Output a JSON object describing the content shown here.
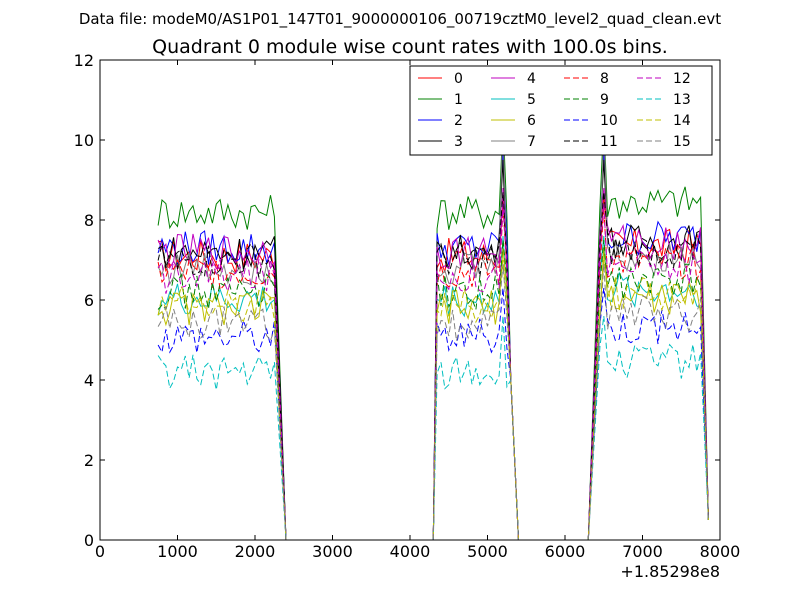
{
  "chart_data": {
    "type": "line",
    "suptitle": "Data file: modeM0/AS1P01_147T01_9000000106_00719cztM0_level2_quad_clean.evt",
    "title": "Quadrant 0 module wise count rates with 100.0s bins.",
    "xlabel": "",
    "ylabel": "",
    "xlim": [
      0,
      8000
    ],
    "ylim": [
      0,
      12
    ],
    "x_ticks": [
      0,
      1000,
      2000,
      3000,
      4000,
      5000,
      6000,
      7000,
      8000
    ],
    "x_tick_labels": [
      "0",
      "1000",
      "2000",
      "3000",
      "4000",
      "5000",
      "6000",
      "7000",
      "8000"
    ],
    "y_ticks": [
      0,
      2,
      4,
      6,
      8,
      10,
      12
    ],
    "y_tick_labels": [
      "0",
      "2",
      "4",
      "6",
      "8",
      "10",
      "12"
    ],
    "x_offset_label": "+1.85298e8",
    "grid": false,
    "legend_position": "top-right",
    "legend_columns": 4,
    "segments": [
      [
        750,
        2250
      ],
      [
        4350,
        5250
      ],
      [
        6450,
        7750
      ]
    ],
    "gap_points": [
      2400,
      3000,
      3600,
      4200,
      4300,
      5300,
      5400,
      5800,
      6300
    ],
    "series": [
      {
        "name": "0",
        "color": "#ff0000",
        "dash": "solid",
        "base": 7.1,
        "peak": 8.6
      },
      {
        "name": "1",
        "color": "#008000",
        "dash": "solid",
        "base": 8.2,
        "peak": 10.5
      },
      {
        "name": "2",
        "color": "#0000ff",
        "dash": "solid",
        "base": 7.3,
        "peak": 9.8
      },
      {
        "name": "3",
        "color": "#000000",
        "dash": "solid",
        "base": 7.2,
        "peak": 9.5
      },
      {
        "name": "4",
        "color": "#bf00bf",
        "dash": "solid",
        "base": 7.2,
        "peak": 8.8
      },
      {
        "name": "5",
        "color": "#00bfbf",
        "dash": "solid",
        "base": 6.0,
        "peak": 7.6
      },
      {
        "name": "6",
        "color": "#bfbf00",
        "dash": "solid",
        "base": 5.8,
        "peak": 7.3
      },
      {
        "name": "7",
        "color": "#808080",
        "dash": "solid",
        "base": 6.8,
        "peak": 10.5
      },
      {
        "name": "8",
        "color": "#ff0000",
        "dash": "dashed",
        "base": 6.7,
        "peak": 8.3
      },
      {
        "name": "9",
        "color": "#008000",
        "dash": "dashed",
        "base": 6.2,
        "peak": 7.5
      },
      {
        "name": "10",
        "color": "#0000ff",
        "dash": "dashed",
        "base": 5.1,
        "peak": 6.3
      },
      {
        "name": "11",
        "color": "#000000",
        "dash": "dashed",
        "base": 7.0,
        "peak": 8.7
      },
      {
        "name": "12",
        "color": "#bf00bf",
        "dash": "dashed",
        "base": 6.6,
        "peak": 8.4
      },
      {
        "name": "13",
        "color": "#00bfbf",
        "dash": "dashed",
        "base": 4.2,
        "peak": 5.6
      },
      {
        "name": "14",
        "color": "#bfbf00",
        "dash": "dashed",
        "base": 5.9,
        "peak": 7.0
      },
      {
        "name": "15",
        "color": "#808080",
        "dash": "dashed",
        "base": 5.4,
        "peak": 6.9
      }
    ]
  }
}
